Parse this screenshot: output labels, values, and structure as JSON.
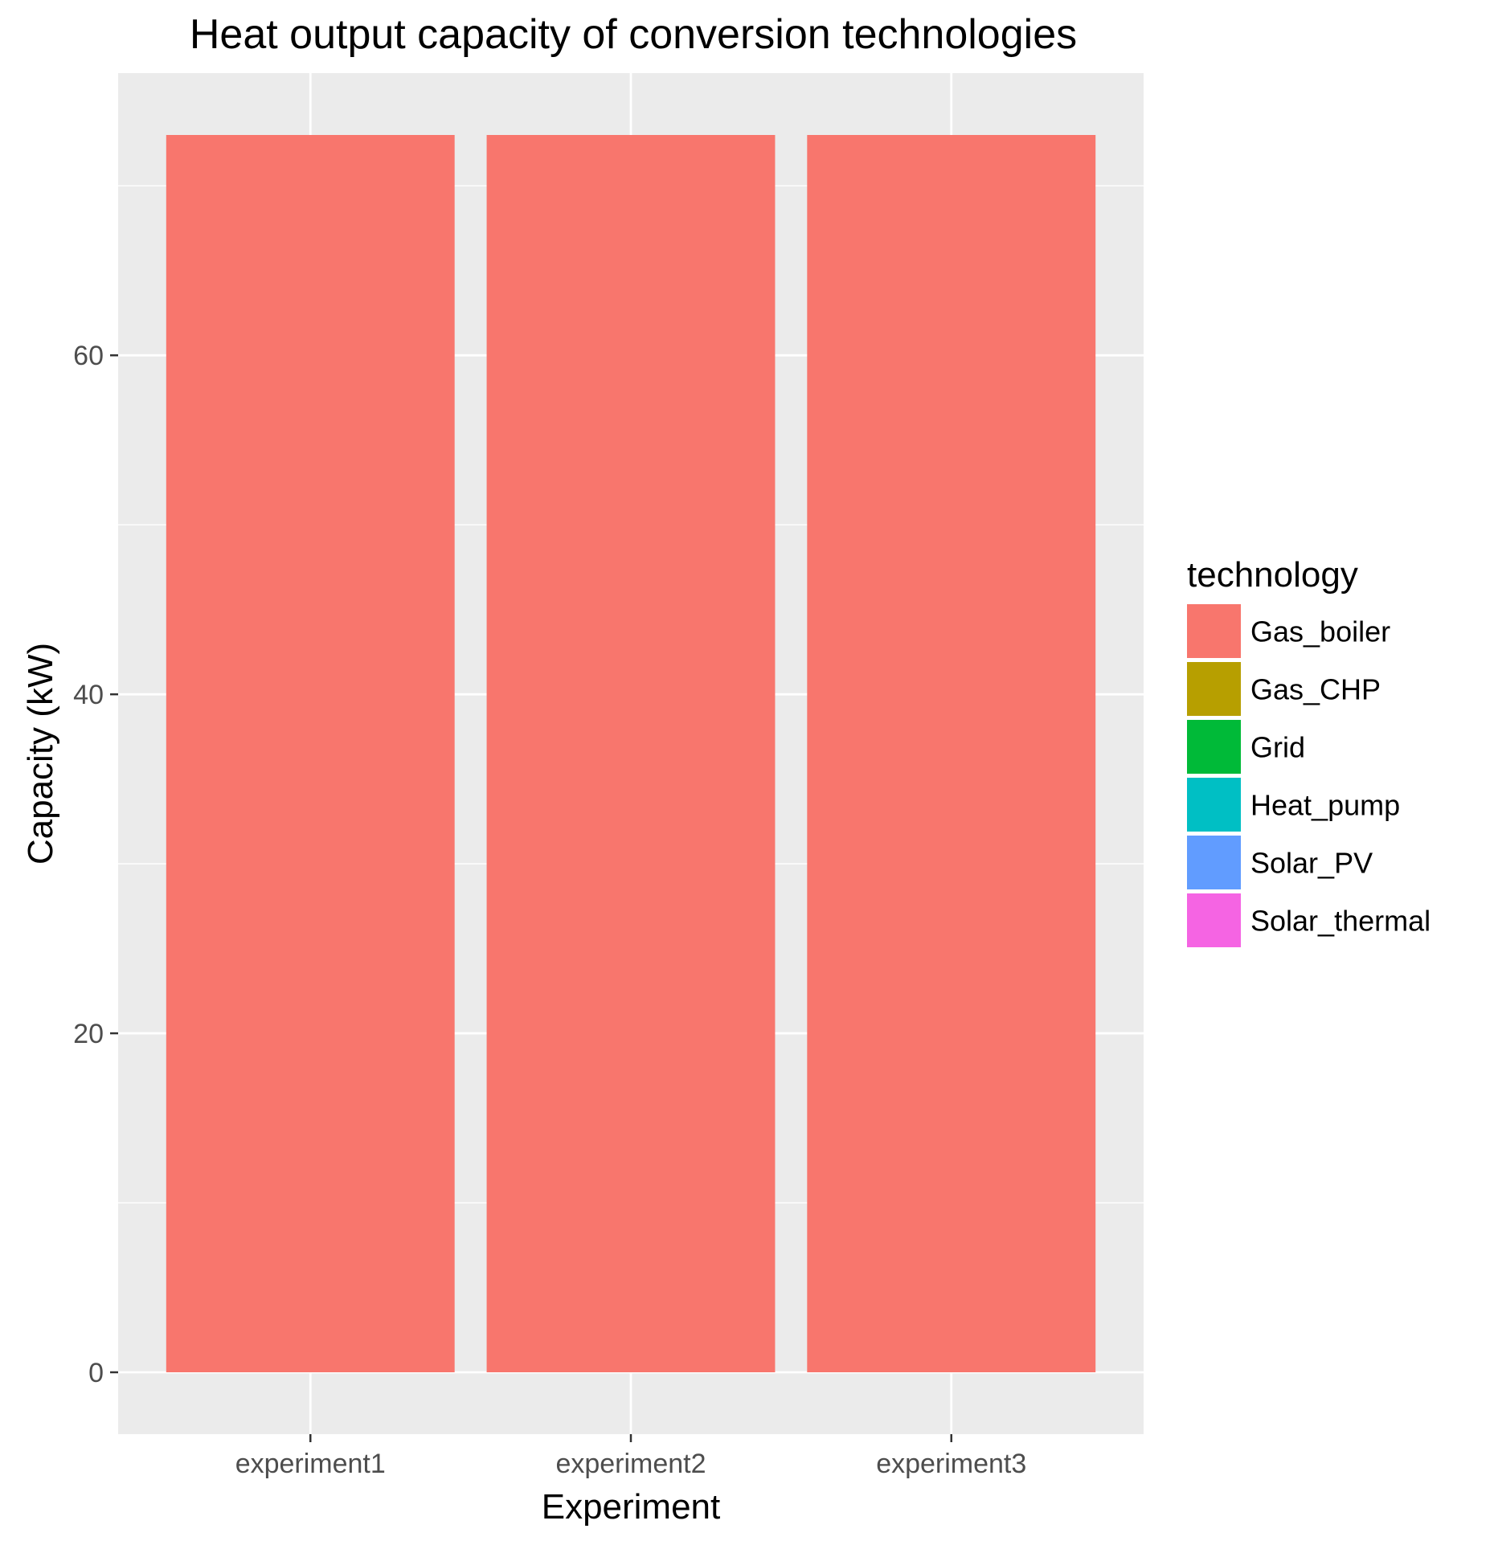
{
  "chart_data": {
    "type": "bar",
    "title": "Heat output capacity of conversion technologies",
    "xlabel": "Experiment",
    "ylabel": "Capacity (kW)",
    "categories": [
      "experiment1",
      "experiment2",
      "experiment3"
    ],
    "series": [
      {
        "name": "Gas_boiler",
        "color": "#F8766D",
        "values": [
          73,
          73,
          73
        ]
      },
      {
        "name": "Gas_CHP",
        "color": "#B79F00",
        "values": [
          0,
          0,
          0
        ]
      },
      {
        "name": "Grid",
        "color": "#00BA38",
        "values": [
          0,
          0,
          0
        ]
      },
      {
        "name": "Heat_pump",
        "color": "#00BFC4",
        "values": [
          0,
          0,
          0
        ]
      },
      {
        "name": "Solar_PV",
        "color": "#619CFF",
        "values": [
          0,
          0,
          0
        ]
      },
      {
        "name": "Solar_thermal",
        "color": "#F564E3",
        "values": [
          0,
          0,
          0
        ]
      }
    ],
    "stacked": true,
    "ylim": [
      -3.65,
      76.65
    ],
    "yticks": [
      0,
      20,
      40,
      60
    ],
    "yticks_labels": [
      "0",
      "20",
      "40",
      "60"
    ],
    "grid": true,
    "panel_color": "#EBEBEB",
    "gridline_color": "#FFFFFF",
    "legend": {
      "title": "technology",
      "position": "right"
    }
  }
}
